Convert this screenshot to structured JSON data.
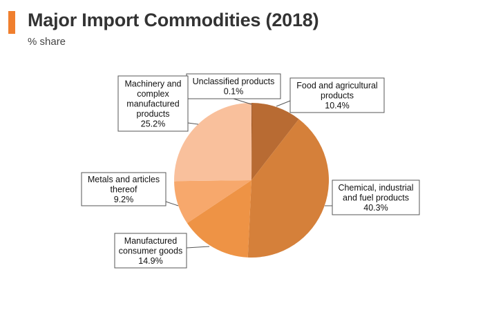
{
  "header": {
    "title": "Major Import Commodities (2018)",
    "subtitle": "% share"
  },
  "colors": {
    "accent": "#f07f2e"
  },
  "chart_data": {
    "type": "pie",
    "title": "Major Import Commodities (2018)",
    "subtitle": "% share",
    "slices": [
      {
        "label": [
          "Unclassified products"
        ],
        "value": 0.1,
        "value_text": "0.1%",
        "color": "#7d3f16"
      },
      {
        "label": [
          "Food and agricultural",
          "products"
        ],
        "value": 10.4,
        "value_text": "10.4%",
        "color": "#b86b33"
      },
      {
        "label": [
          "Chemical, industrial",
          "and fuel products"
        ],
        "value": 40.3,
        "value_text": "40.3%",
        "color": "#d5803a"
      },
      {
        "label": [
          "Manufactured",
          "consumer goods"
        ],
        "value": 14.9,
        "value_text": "14.9%",
        "color": "#ee9345"
      },
      {
        "label": [
          "Metals and articles",
          "thereof"
        ],
        "value": 9.2,
        "value_text": "9.2%",
        "color": "#f7a86c"
      },
      {
        "label": [
          "Machinery and",
          "complex",
          "manufactured",
          "products"
        ],
        "value": 25.2,
        "value_text": "25.2%",
        "color": "#f9c09c"
      }
    ]
  }
}
